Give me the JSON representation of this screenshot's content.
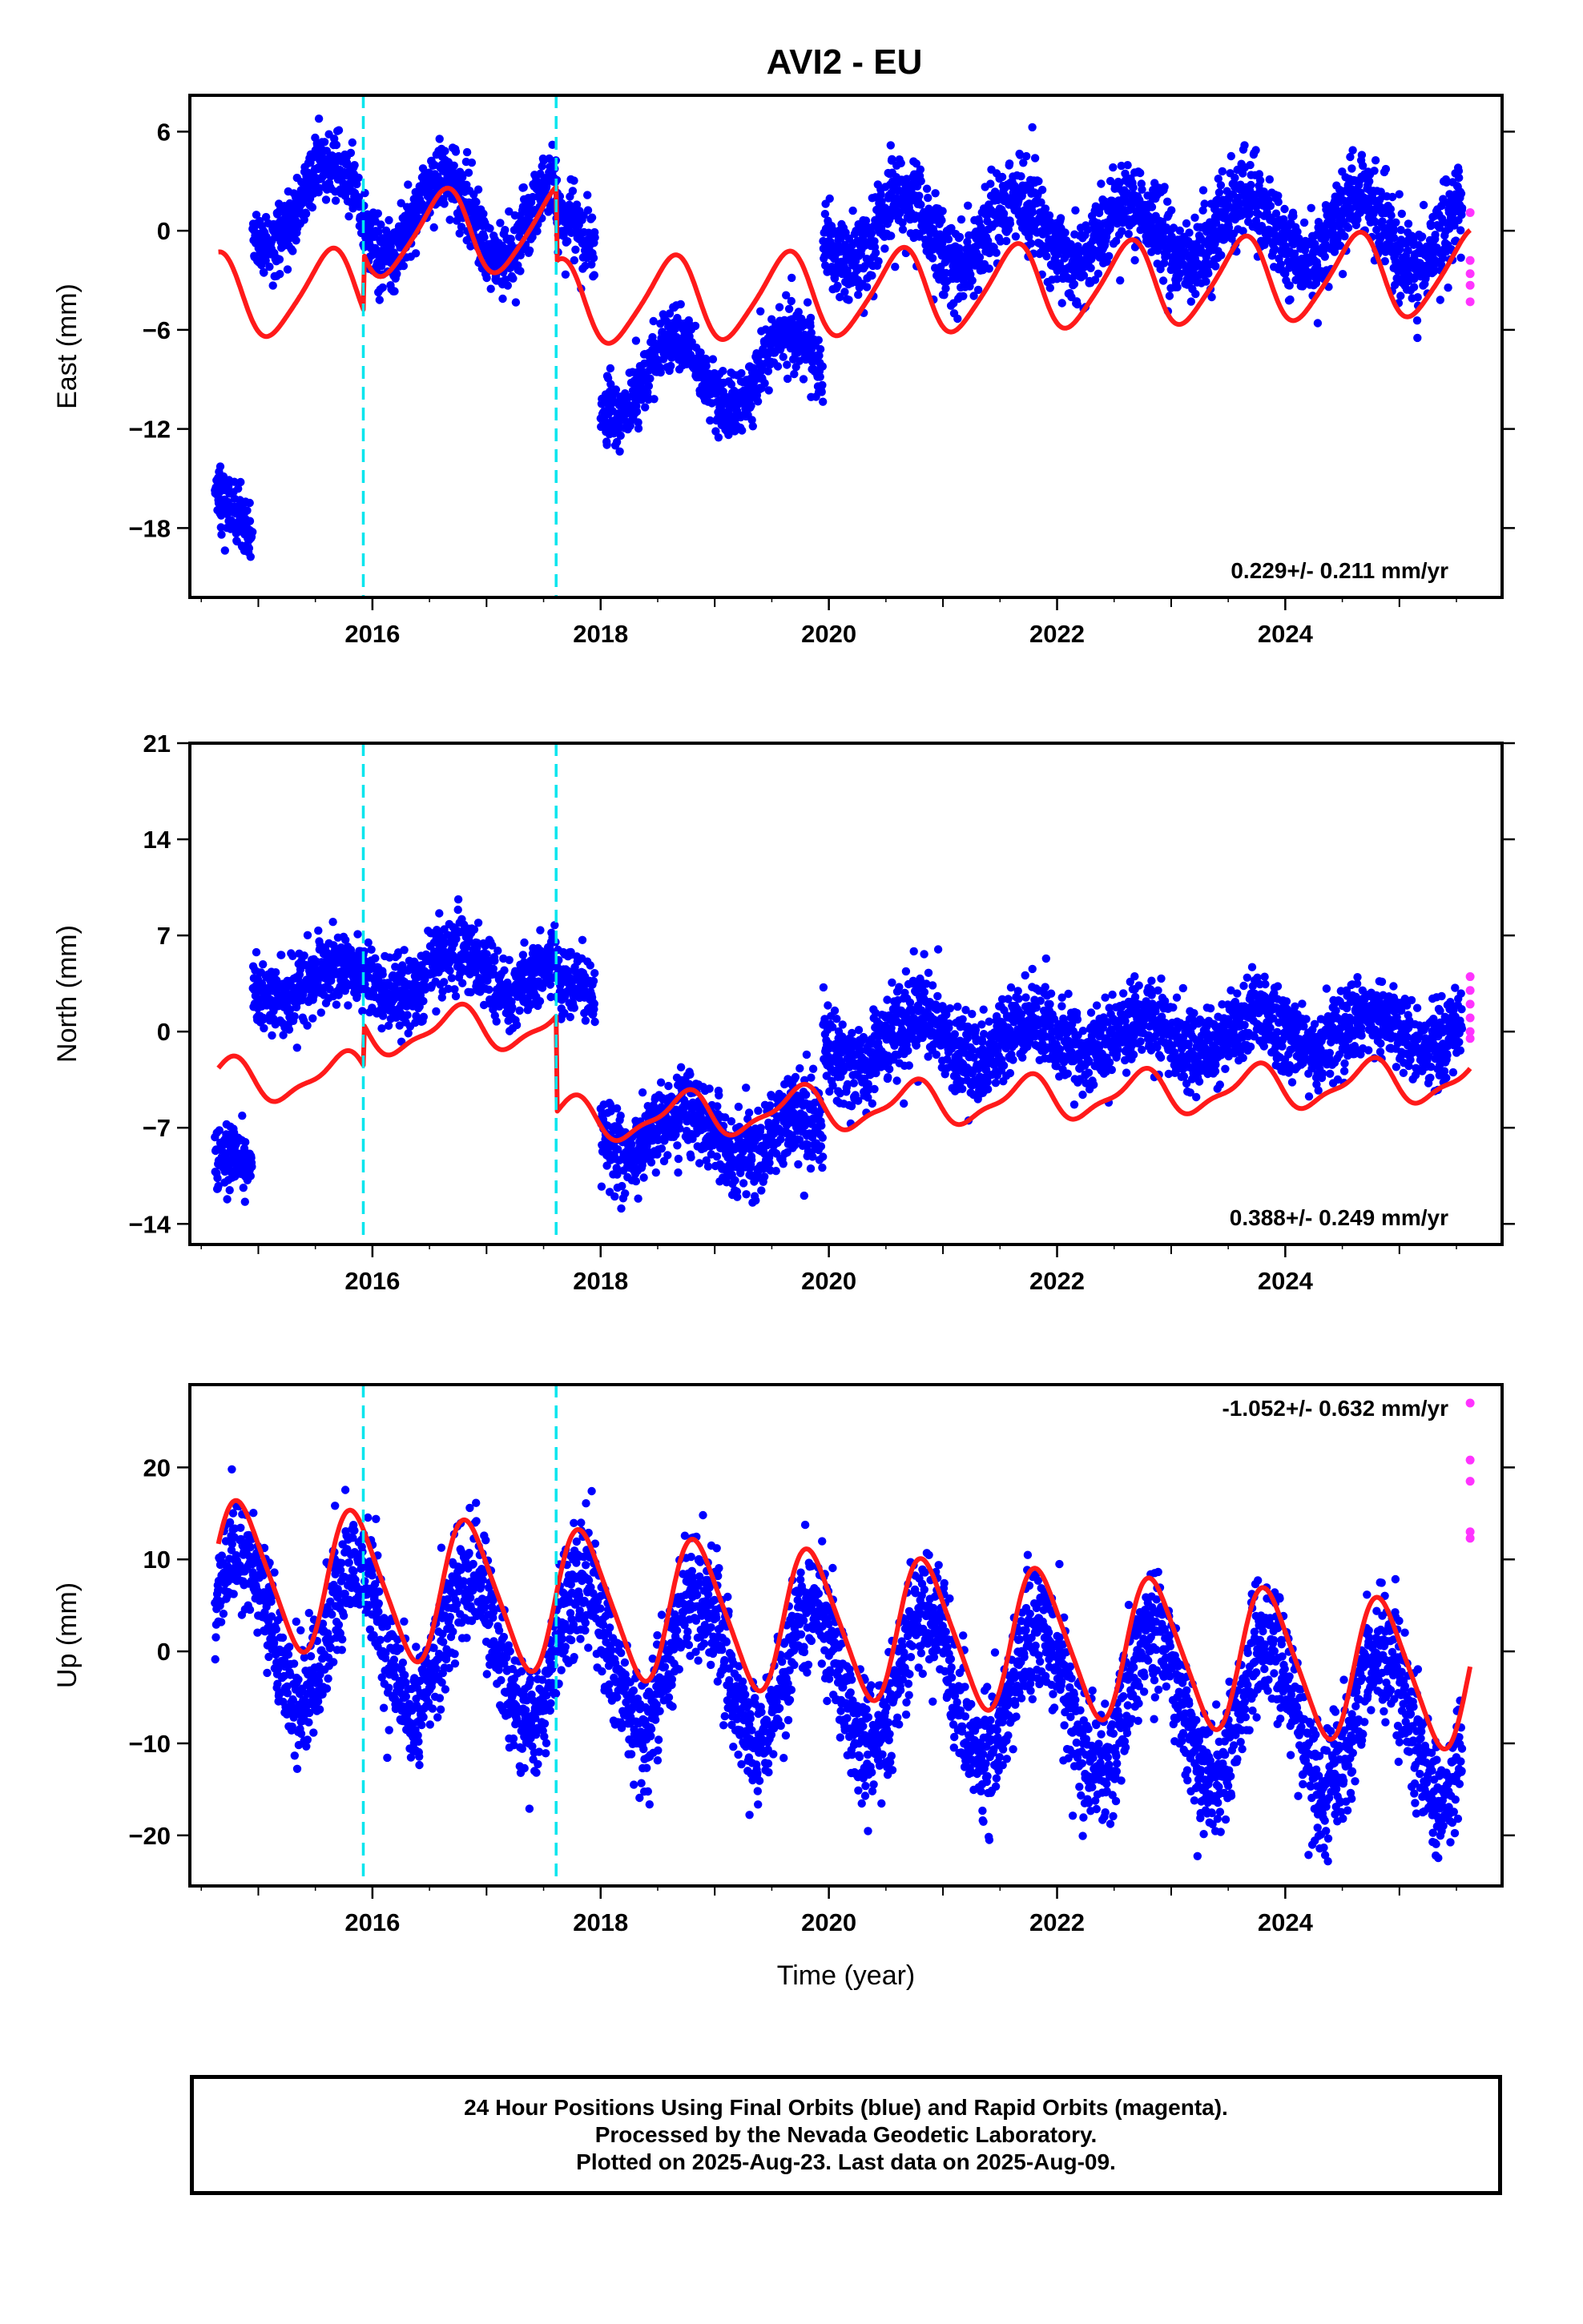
{
  "title": "AVI2 - EU",
  "colors": {
    "final_orbits": "#0000ff",
    "rapid_orbits": "#ff33ff",
    "model_fit": "#ff1a1a",
    "equipment_change": "#00e5ee",
    "frame": "#000000"
  },
  "footer": {
    "line1": "24 Hour Positions Using Final Orbits (blue) and Rapid Orbits (magenta).",
    "line2": "Processed by the Nevada Geodetic Laboratory.",
    "line3": "Plotted on 2025-Aug-23. Last data on 2025-Aug-09."
  },
  "chart_data": [
    {
      "type": "scatter",
      "component": "east",
      "title": "AVI2 - EU",
      "ylabel": "East (mm)",
      "xlabel": "",
      "xlim": [
        2014.4,
        2025.9
      ],
      "ylim": [
        -22.2,
        8.2
      ],
      "xticks": [
        2016,
        2018,
        2020,
        2022,
        2024
      ],
      "yticks": [
        -18,
        -12,
        -6,
        0,
        6
      ],
      "rate_label": "0.229+/- 0.211 mm/yr",
      "equipment_changes": [
        2015.92,
        2017.61
      ],
      "segments": [
        {
          "start": 2014.62,
          "end": 2014.95,
          "offset": -16.5,
          "trend": -6.0,
          "amp": 0.8,
          "phase": 0.35,
          "noise": 0.9
        },
        {
          "start": 2014.95,
          "end": 2015.92,
          "offset": 1.0,
          "trend": 1.4,
          "amp": 2.2,
          "phase": 0.35,
          "noise": 1.0
        },
        {
          "start": 2015.92,
          "end": 2017.61,
          "offset": 0.9,
          "trend": 0.0,
          "amp": 2.6,
          "phase": 0.38,
          "noise": 1.1
        },
        {
          "start": 2017.61,
          "end": 2017.95,
          "offset": -0.2,
          "trend": -1.0,
          "amp": 1.2,
          "phase": 0.38,
          "noise": 1.1
        },
        {
          "start": 2018.0,
          "end": 2019.95,
          "offset": -8.9,
          "trend": 0.3,
          "amp": 2.3,
          "phase": 0.4,
          "noise": 1.0
        },
        {
          "start": 2019.95,
          "end": 2025.55,
          "offset": 0.0,
          "trend": 0.0,
          "amp": 2.0,
          "phase": 0.4,
          "noise": 1.3
        }
      ],
      "rapid_points": [
        {
          "x": 2025.62,
          "y": 1.1
        },
        {
          "x": 2025.62,
          "y": -1.8
        },
        {
          "x": 2025.62,
          "y": -2.6
        },
        {
          "x": 2025.62,
          "y": -3.3
        },
        {
          "x": 2025.62,
          "y": -4.3
        }
      ],
      "model": {
        "intercept": -2.75,
        "rate": 0.229,
        "annual_amp": 2.5,
        "annual_phase": 0.37,
        "semi_amp": 0.4,
        "semi_phase": 0.1,
        "start": 2014.65,
        "end": 2025.62,
        "offsets": [
          {
            "t": 2015.92,
            "d": 3.4
          },
          {
            "t": 2017.61,
            "d": -4.5
          }
        ]
      }
    },
    {
      "type": "scatter",
      "component": "north",
      "title": "",
      "ylabel": "North (mm)",
      "xlabel": "",
      "xlim": [
        2014.4,
        2025.9
      ],
      "ylim": [
        -15.5,
        21.0
      ],
      "xticks": [
        2016,
        2018,
        2020,
        2022,
        2024
      ],
      "yticks": [
        -14,
        -7,
        0,
        7,
        14,
        21
      ],
      "rate_label": "0.388+/- 0.249 mm/yr",
      "equipment_changes": [
        2015.92,
        2017.61
      ],
      "segments": [
        {
          "start": 2014.62,
          "end": 2014.95,
          "offset": -9.5,
          "trend": 0.0,
          "amp": 0.5,
          "phase": 0.45,
          "noise": 1.2
        },
        {
          "start": 2014.95,
          "end": 2015.92,
          "offset": 3.6,
          "trend": 0.0,
          "amp": 1.2,
          "phase": 0.45,
          "noise": 1.3
        },
        {
          "start": 2015.92,
          "end": 2017.61,
          "offset": 4.2,
          "trend": 0.3,
          "amp": 1.8,
          "phase": 0.48,
          "noise": 1.3
        },
        {
          "start": 2017.61,
          "end": 2017.95,
          "offset": 3.0,
          "trend": -2.0,
          "amp": 0.8,
          "phase": 0.48,
          "noise": 1.3
        },
        {
          "start": 2018.0,
          "end": 2019.95,
          "offset": -7.0,
          "trend": -0.5,
          "amp": 1.6,
          "phase": 0.5,
          "noise": 1.5
        },
        {
          "start": 2019.95,
          "end": 2021.6,
          "offset": -0.8,
          "trend": 0.2,
          "amp": 1.8,
          "phase": 0.5,
          "noise": 1.6
        },
        {
          "start": 2021.6,
          "end": 2025.55,
          "offset": -0.5,
          "trend": 0.2,
          "amp": 1.3,
          "phase": 0.5,
          "noise": 1.4
        }
      ],
      "rapid_points": [
        {
          "x": 2025.62,
          "y": 4.0
        },
        {
          "x": 2025.62,
          "y": 3.0
        },
        {
          "x": 2025.62,
          "y": 2.0
        },
        {
          "x": 2025.62,
          "y": 1.0
        },
        {
          "x": 2025.62,
          "y": 0.0
        },
        {
          "x": 2025.62,
          "y": -0.5
        }
      ],
      "model": {
        "intercept": -1.6,
        "rate": 0.388,
        "annual_amp": 1.5,
        "annual_phase": 0.48,
        "semi_amp": 0.5,
        "semi_phase": 0.2,
        "start": 2014.65,
        "end": 2025.62,
        "offsets": [
          {
            "t": 2015.92,
            "d": 3.0
          },
          {
            "t": 2017.61,
            "d": -7.0
          }
        ]
      }
    },
    {
      "type": "scatter",
      "component": "up",
      "title": "",
      "ylabel": "Up (mm)",
      "xlabel": "Time (year)",
      "xlim": [
        2014.4,
        2025.9
      ],
      "ylim": [
        -25.5,
        29.0
      ],
      "xticks": [
        2016,
        2018,
        2020,
        2022,
        2024
      ],
      "yticks": [
        -20,
        -10,
        0,
        10,
        20
      ],
      "rate_label": "-1.052+/- 0.632 mm/yr",
      "equipment_changes": [
        2015.92,
        2017.61
      ],
      "segments": [
        {
          "start": 2014.62,
          "end": 2025.55,
          "offset": 3.0,
          "trend": -1.052,
          "amp": 7.8,
          "phase": 0.6,
          "noise": 3.3
        }
      ],
      "rapid_points": [
        {
          "x": 2025.62,
          "y": 27.0
        },
        {
          "x": 2025.62,
          "y": 20.8
        },
        {
          "x": 2025.62,
          "y": 18.5
        },
        {
          "x": 2025.62,
          "y": 13.0
        },
        {
          "x": 2025.62,
          "y": 12.3
        }
      ],
      "model": {
        "intercept": 3.0,
        "rate": -1.052,
        "annual_amp": 7.6,
        "annual_phase": 0.6,
        "semi_amp": 1.2,
        "semi_phase": 0.1,
        "start": 2014.65,
        "end": 2025.62,
        "offsets": []
      }
    }
  ]
}
